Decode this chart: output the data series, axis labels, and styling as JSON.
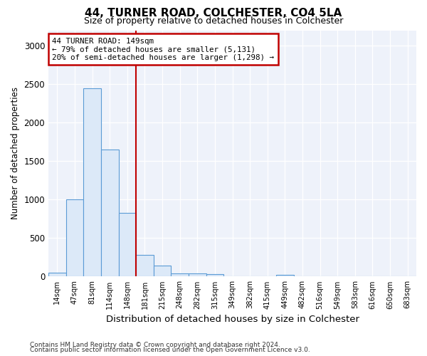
{
  "title": "44, TURNER ROAD, COLCHESTER, CO4 5LA",
  "subtitle": "Size of property relative to detached houses in Colchester",
  "xlabel": "Distribution of detached houses by size in Colchester",
  "ylabel": "Number of detached properties",
  "annotation_line1": "44 TURNER ROAD: 149sqm",
  "annotation_line2": "← 79% of detached houses are smaller (5,131)",
  "annotation_line3": "20% of semi-detached houses are larger (1,298) →",
  "footer1": "Contains HM Land Registry data © Crown copyright and database right 2024.",
  "footer2": "Contains public sector information licensed under the Open Government Licence v3.0.",
  "bar_color": "#dce9f8",
  "bar_edge_color": "#5b9bd5",
  "vline_color": "#c00000",
  "annotation_box_edge_color": "#c00000",
  "background_color": "#eef2fa",
  "bin_labels": [
    "14sqm",
    "47sqm",
    "81sqm",
    "114sqm",
    "148sqm",
    "181sqm",
    "215sqm",
    "248sqm",
    "282sqm",
    "315sqm",
    "349sqm",
    "382sqm",
    "415sqm",
    "449sqm",
    "482sqm",
    "516sqm",
    "549sqm",
    "583sqm",
    "616sqm",
    "650sqm",
    "683sqm"
  ],
  "bar_values": [
    50,
    1000,
    2450,
    1650,
    830,
    280,
    140,
    45,
    45,
    30,
    0,
    0,
    0,
    25,
    0,
    0,
    0,
    0,
    0,
    0,
    0
  ],
  "ylim": [
    0,
    3200
  ],
  "yticks": [
    0,
    500,
    1000,
    1500,
    2000,
    2500,
    3000
  ],
  "vline_x": 4.5
}
